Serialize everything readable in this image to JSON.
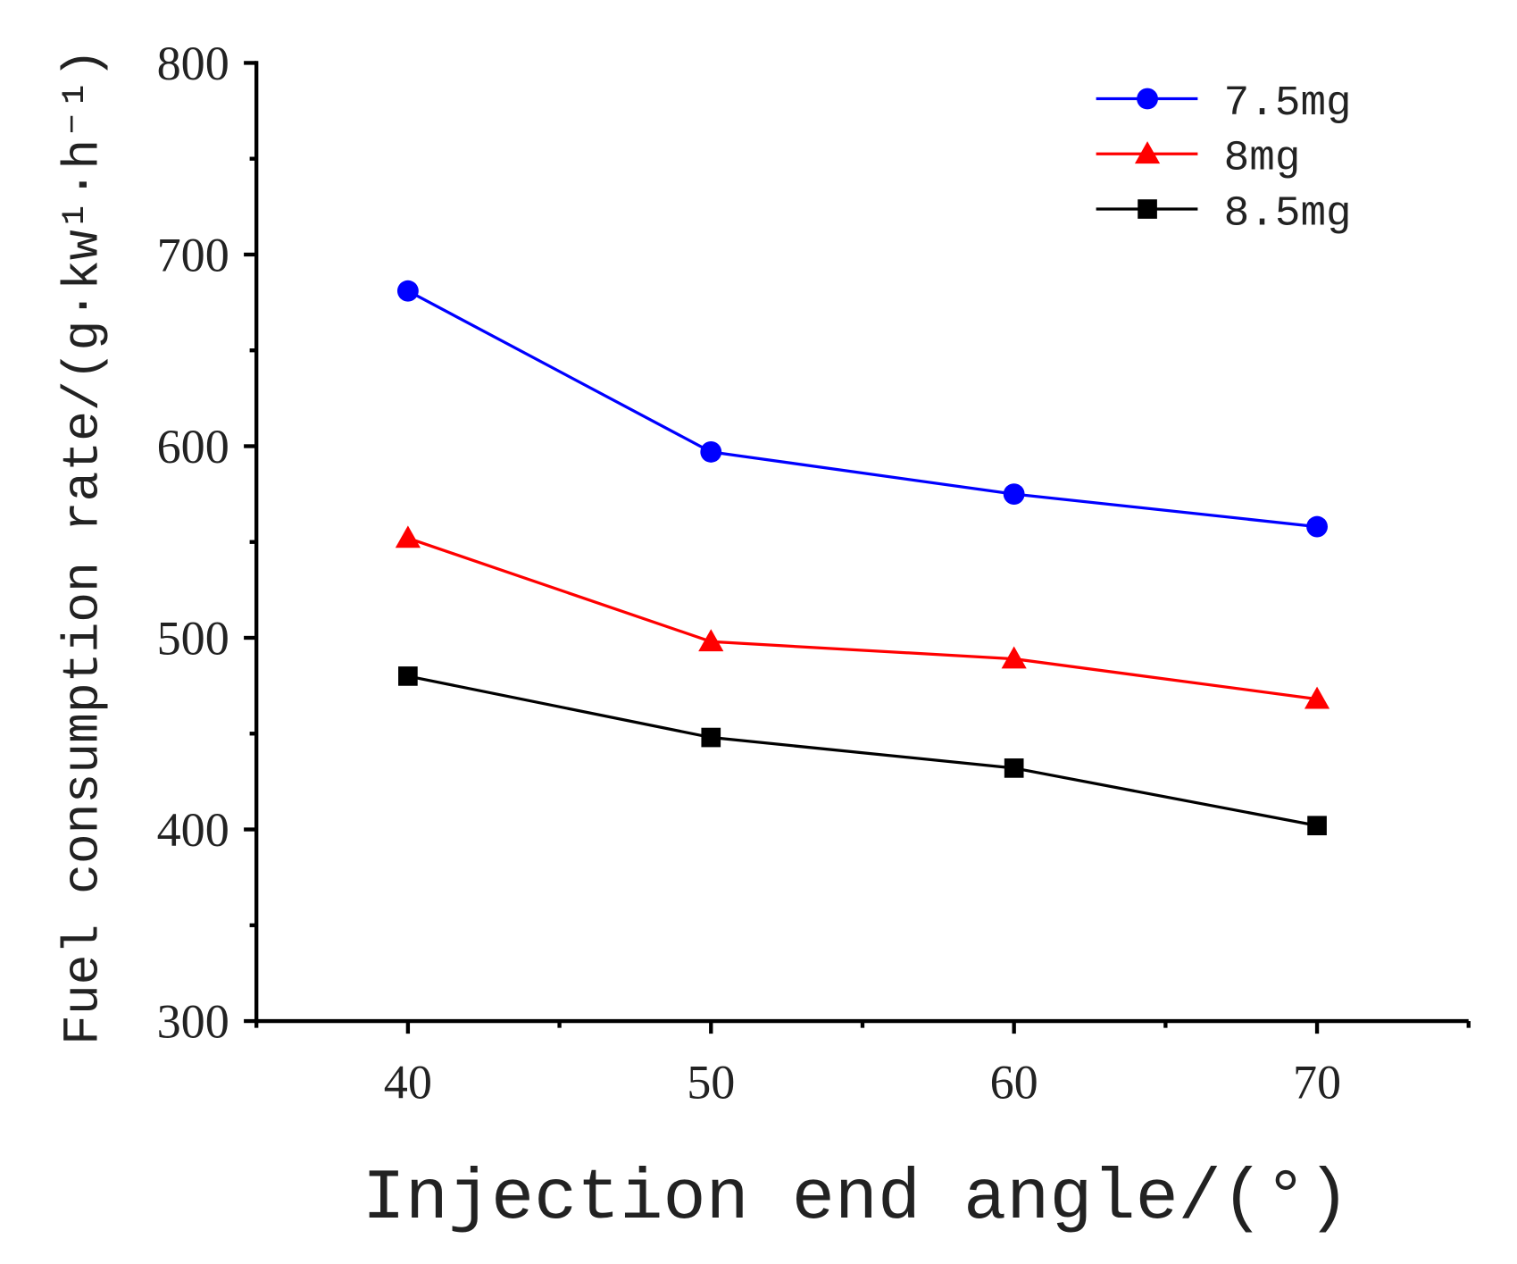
{
  "chart_data": {
    "type": "line",
    "title": "",
    "xlabel": "Injection end angle/(°)",
    "ylabel": "Fuel consumption rate/(g·kw¹·h⁻¹)",
    "x": [
      40,
      50,
      60,
      70
    ],
    "xlim": [
      35,
      75
    ],
    "ylim": [
      300,
      800
    ],
    "xticks": [
      "40",
      "50",
      "60",
      "70"
    ],
    "yticks": [
      "300",
      "400",
      "500",
      "600",
      "700",
      "800"
    ],
    "grid": false,
    "legend_position": "top-right",
    "series": [
      {
        "name": "7.5mg",
        "color": "#0000ff",
        "marker": "circle",
        "values": [
          681,
          597,
          575,
          558
        ]
      },
      {
        "name": "8mg",
        "color": "#ff0000",
        "marker": "triangle",
        "values": [
          552,
          498,
          489,
          468
        ]
      },
      {
        "name": "8.5mg",
        "color": "#000000",
        "marker": "square",
        "values": [
          480,
          448,
          432,
          402
        ]
      }
    ]
  }
}
